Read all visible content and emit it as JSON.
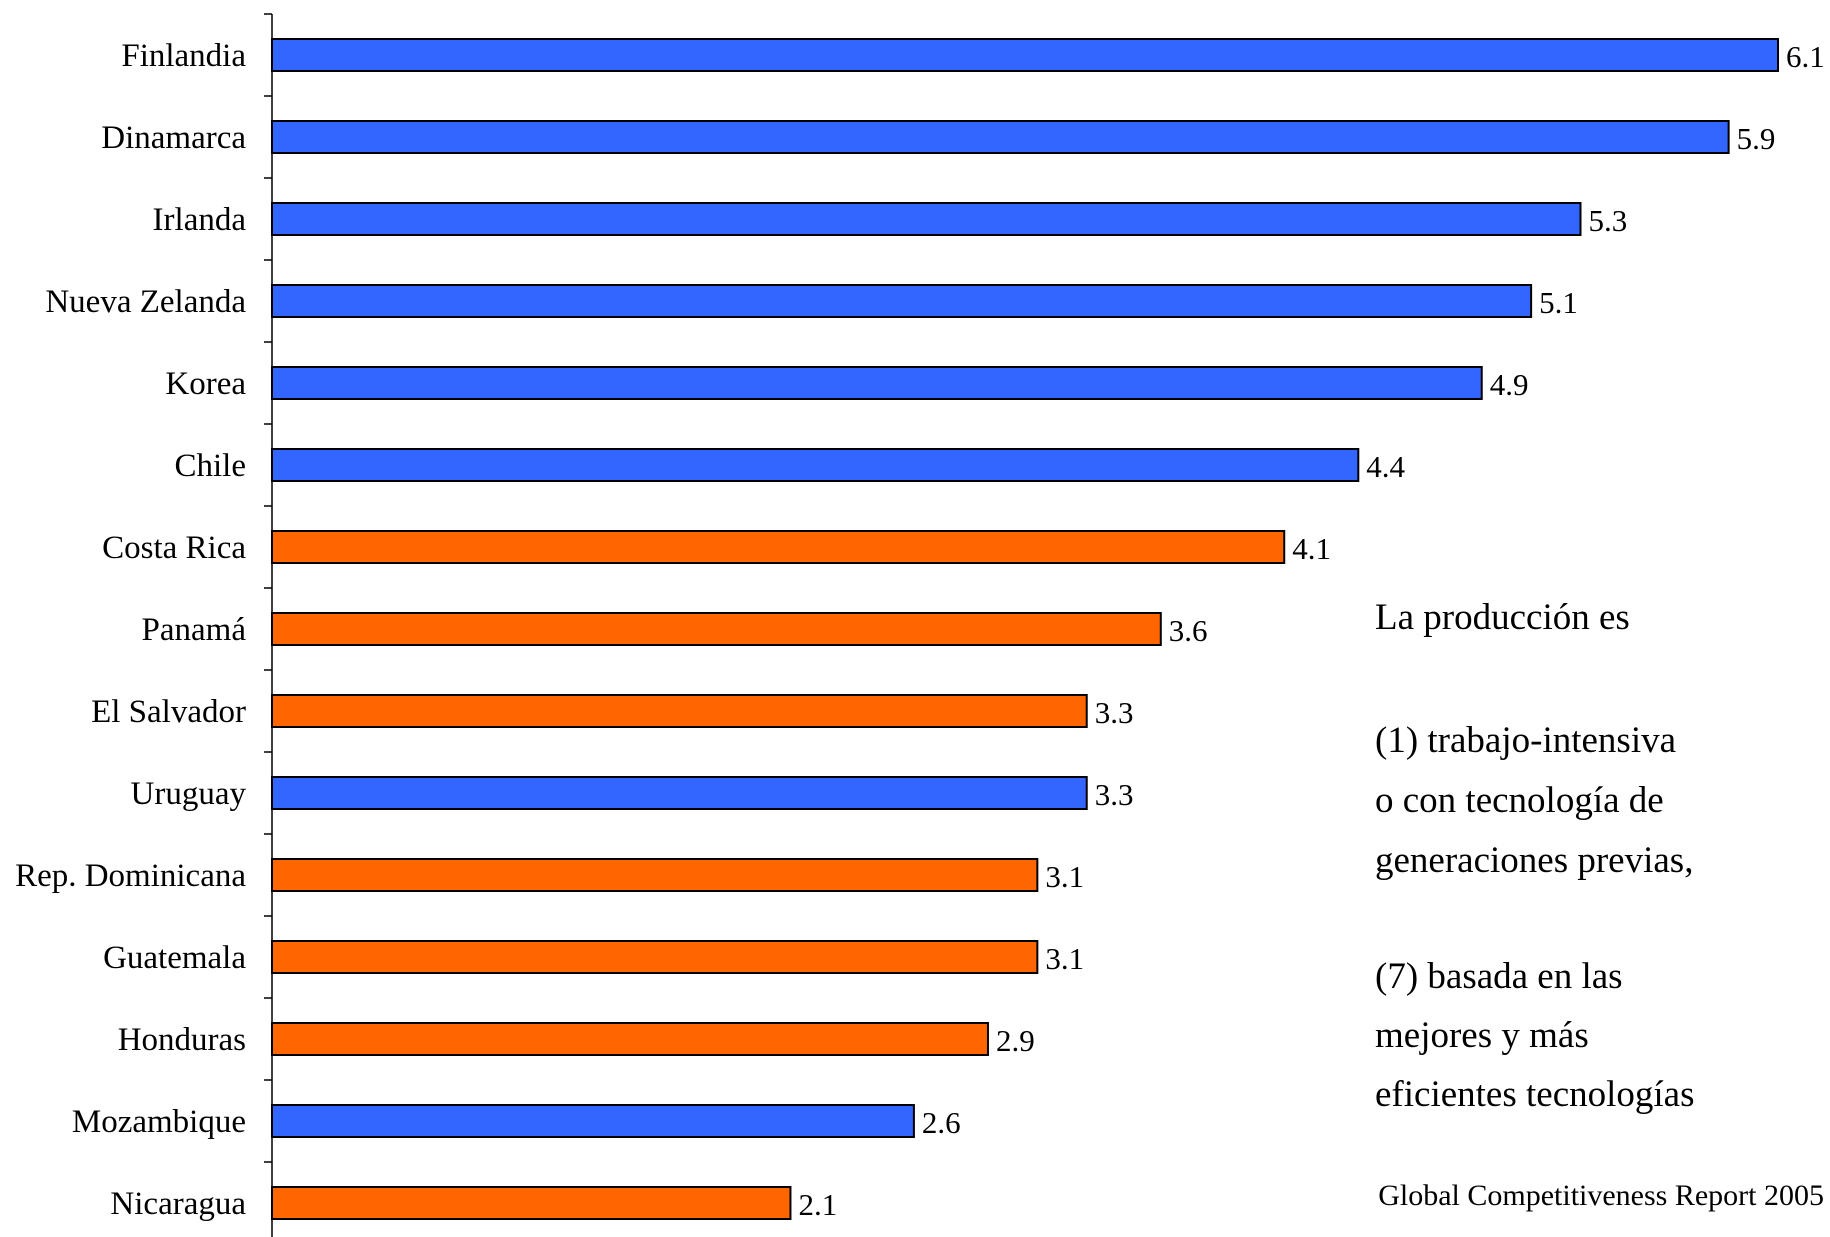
{
  "chart_data": {
    "type": "bar",
    "orientation": "horizontal",
    "categories": [
      "Finlandia",
      "Dinamarca",
      "Irlanda",
      "Nueva Zelanda",
      "Korea",
      "Chile",
      "Costa Rica",
      "Panamá",
      "El Salvador",
      "Uruguay",
      "Rep. Dominicana",
      "Guatemala",
      "Honduras",
      "Mozambique",
      "Nicaragua"
    ],
    "values": [
      6.1,
      5.9,
      5.3,
      5.1,
      4.9,
      4.4,
      4.1,
      3.6,
      3.3,
      3.3,
      3.1,
      3.1,
      2.9,
      2.6,
      2.1
    ],
    "value_labels": [
      "6.1",
      "5.9",
      "5.3",
      "5.1",
      "4.9",
      "4.4",
      "4.1",
      "3.6",
      "3.3",
      "3.3",
      "3.1",
      "3.1",
      "2.9",
      "2.6",
      "2.1"
    ],
    "groups": [
      "blue",
      "blue",
      "blue",
      "blue",
      "blue",
      "blue",
      "orange",
      "orange",
      "orange",
      "blue",
      "orange",
      "orange",
      "orange",
      "blue",
      "orange"
    ],
    "colors": {
      "blue": "#3366ff",
      "orange": "#ff6600"
    },
    "xlim": [
      0,
      6.1
    ],
    "xaxis_visible": false,
    "grid": false,
    "legend": "none",
    "title": "",
    "xlabel": "",
    "ylabel": ""
  },
  "annotation": {
    "lines": [
      "La producción es",
      "",
      "(1) trabajo-intensiva",
      "o con tecnología de",
      "generaciones previas,",
      "",
      "(7) basada en las",
      "mejores y más",
      "eficientes tecnologías"
    ]
  },
  "source": "Global Competitiveness Report 2005"
}
